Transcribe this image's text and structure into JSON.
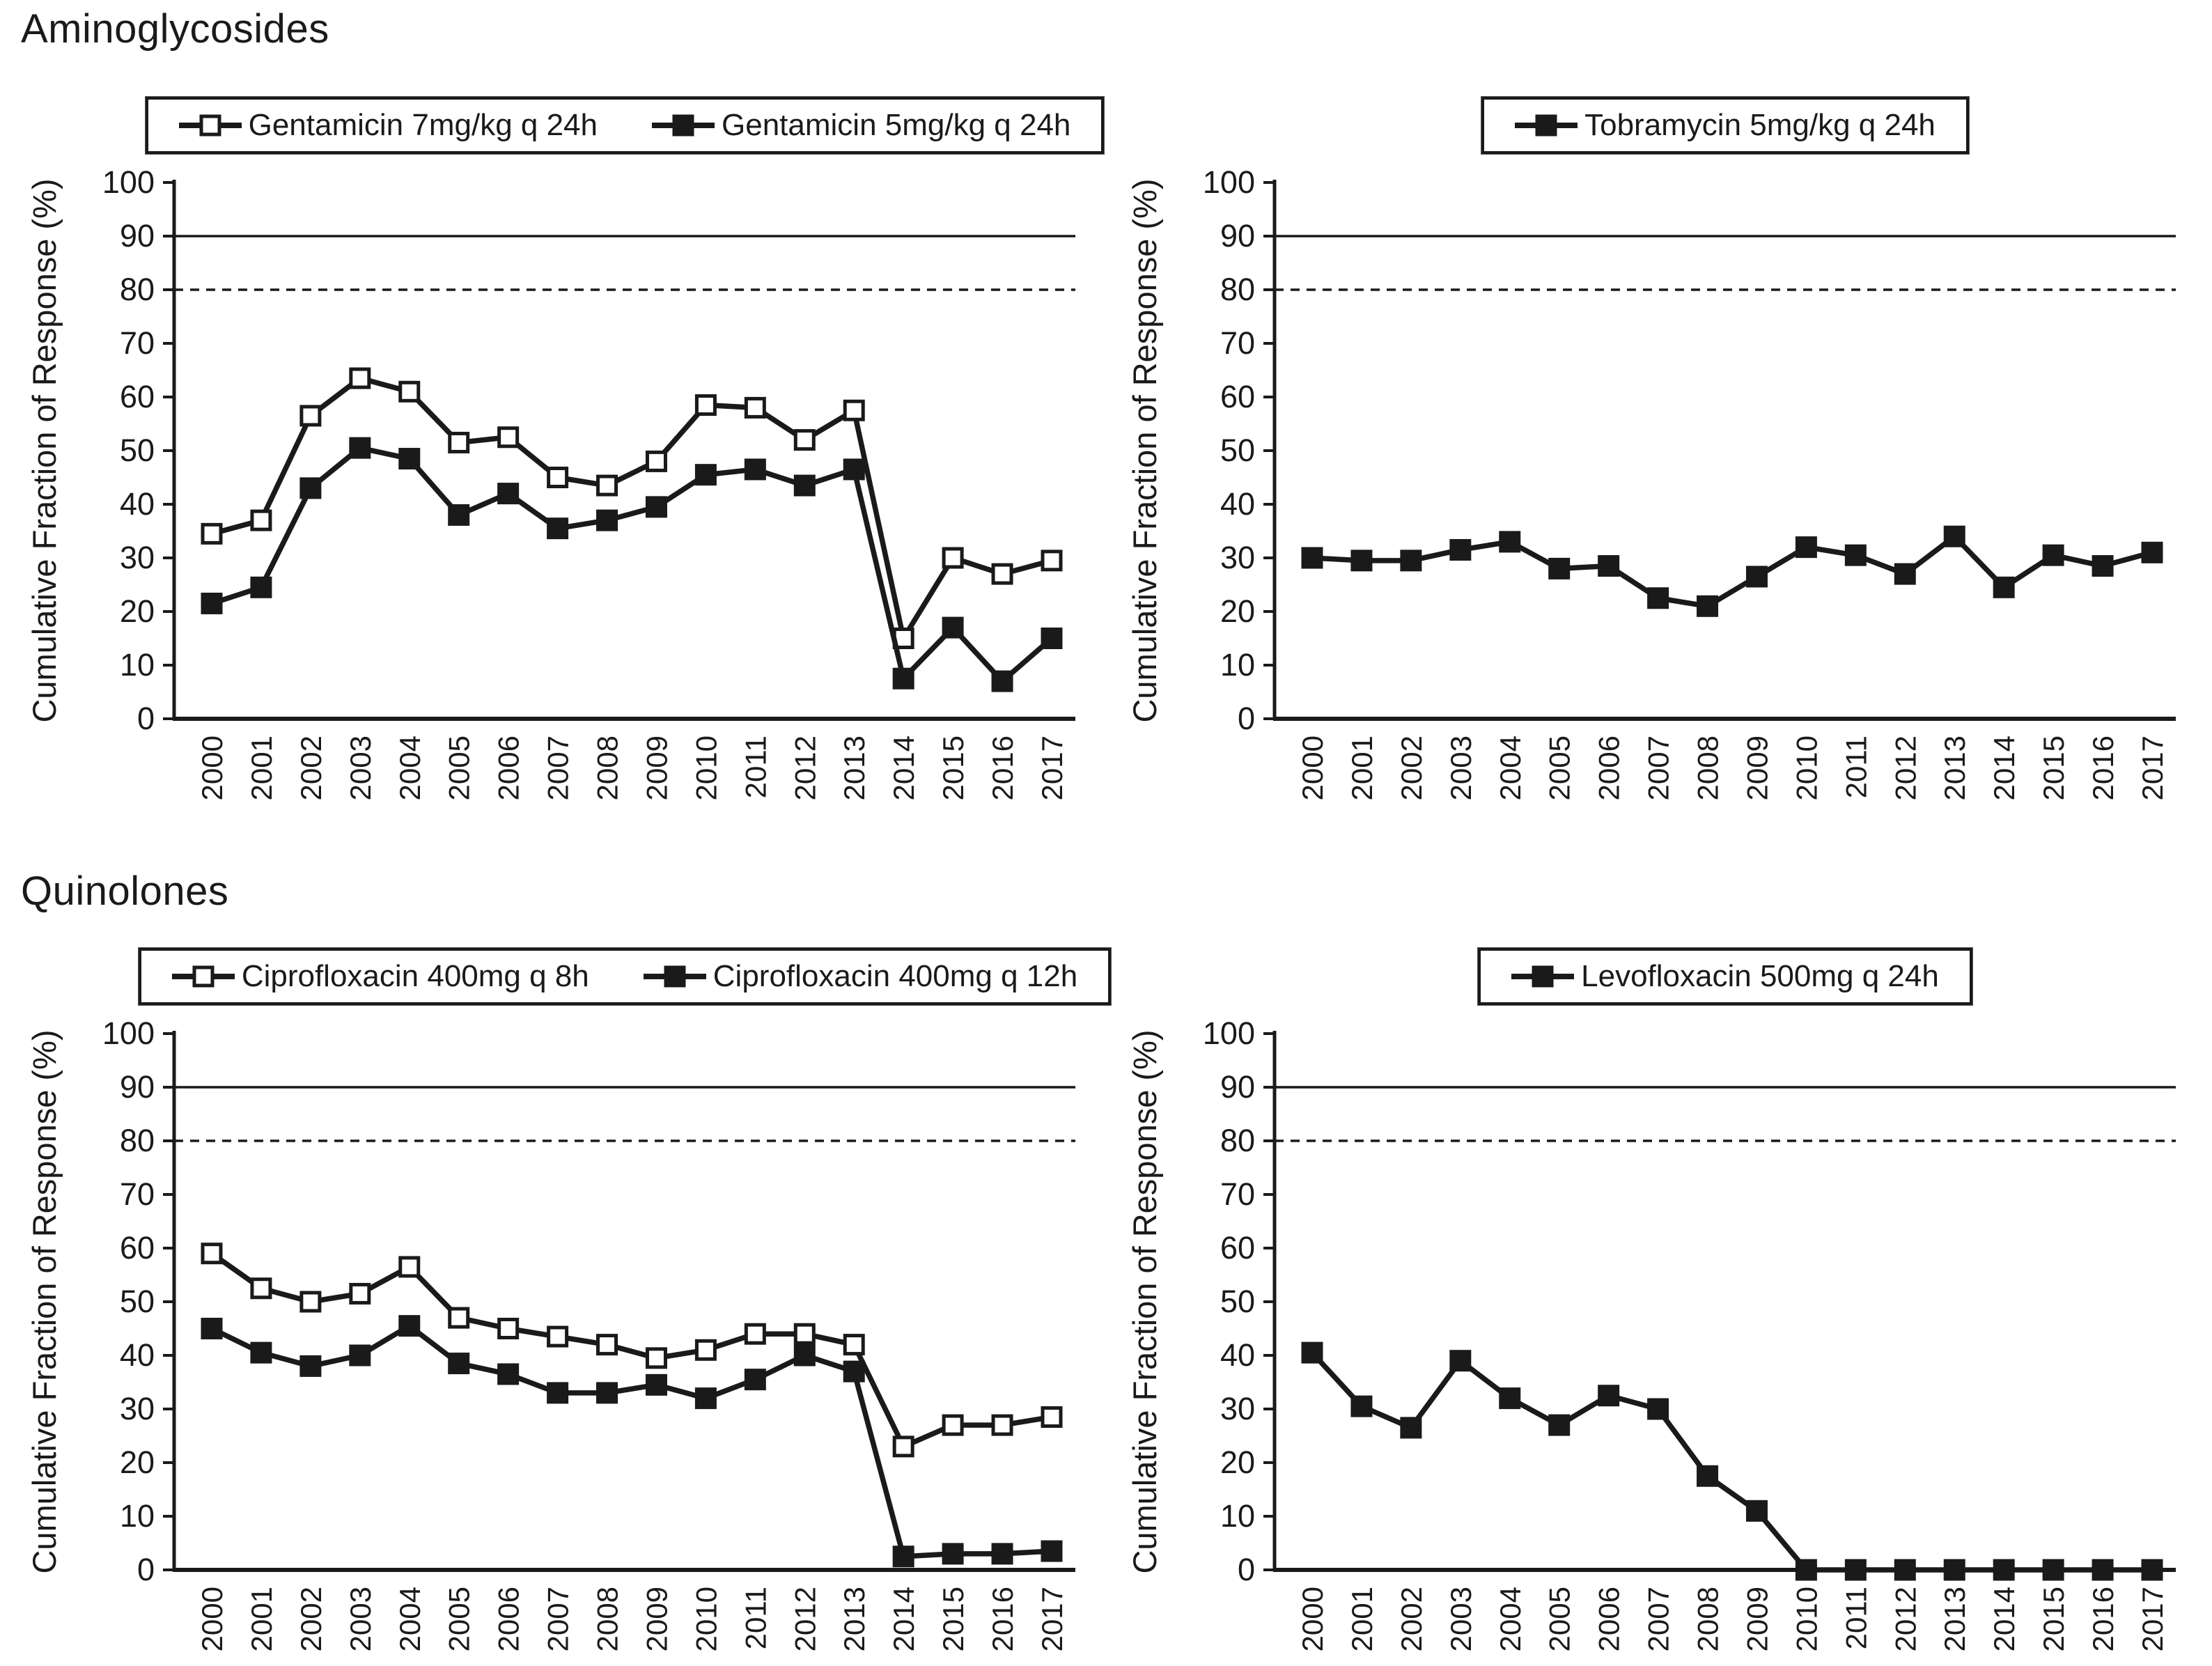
{
  "page": {
    "ink_color": "#1a1a1a",
    "background_color": "#ffffff"
  },
  "sections": [
    {
      "title": "Aminoglycosides"
    },
    {
      "title": "Quinolones"
    }
  ],
  "chart_data": [
    {
      "type": "line",
      "panel": "aminoglycosides-left",
      "ylabel": "Cumulative Fraction of Response (%)",
      "ylim": [
        0,
        100
      ],
      "ytick_step": 10,
      "grid": "off",
      "legend_position": "top",
      "reference_lines": [
        {
          "y": 90,
          "style": "solid"
        },
        {
          "y": 80,
          "style": "dashed"
        }
      ],
      "categories": [
        "2000",
        "2001",
        "2002",
        "2003",
        "2004",
        "2005",
        "2006",
        "2007",
        "2008",
        "2009",
        "2010",
        "2011",
        "2012",
        "2013",
        "2014",
        "2015",
        "2016",
        "2017"
      ],
      "series": [
        {
          "name": "Gentamicin 7mg/kg q 24h",
          "marker": "open-square",
          "values": [
            34.5,
            37,
            56.5,
            63.5,
            61,
            51.5,
            52.5,
            45,
            43.5,
            48,
            58.5,
            58,
            52,
            57.5,
            15,
            30,
            27,
            29.5
          ]
        },
        {
          "name": "Gentamicin 5mg/kg  q 24h",
          "marker": "filled-square",
          "values": [
            21.5,
            24.5,
            43,
            50.5,
            48.5,
            38,
            42,
            35.5,
            37,
            39.5,
            45.5,
            46.5,
            43.5,
            46.5,
            7.5,
            17,
            7,
            15
          ]
        }
      ]
    },
    {
      "type": "line",
      "panel": "aminoglycosides-right",
      "ylabel": "Cumulative Fraction of Response (%)",
      "ylim": [
        0,
        100
      ],
      "ytick_step": 10,
      "grid": "off",
      "legend_position": "top",
      "reference_lines": [
        {
          "y": 90,
          "style": "solid"
        },
        {
          "y": 80,
          "style": "dashed"
        }
      ],
      "categories": [
        "2000",
        "2001",
        "2002",
        "2003",
        "2004",
        "2005",
        "2006",
        "2007",
        "2008",
        "2009",
        "2010",
        "2011",
        "2012",
        "2013",
        "2014",
        "2015",
        "2016",
        "2017"
      ],
      "series": [
        {
          "name": "Tobramycin 5mg/kg q 24h",
          "marker": "filled-square",
          "values": [
            30,
            29.5,
            29.5,
            31.5,
            33,
            28,
            28.5,
            22.5,
            21,
            26.5,
            32,
            30.5,
            27,
            34,
            24.5,
            30.5,
            28.5,
            31
          ]
        }
      ]
    },
    {
      "type": "line",
      "panel": "quinolones-left",
      "ylabel": "Cumulative Fraction of Response (%)",
      "ylim": [
        0,
        100
      ],
      "ytick_step": 10,
      "grid": "off",
      "legend_position": "top",
      "reference_lines": [
        {
          "y": 90,
          "style": "solid"
        },
        {
          "y": 80,
          "style": "dashed"
        }
      ],
      "categories": [
        "2000",
        "2001",
        "2002",
        "2003",
        "2004",
        "2005",
        "2006",
        "2007",
        "2008",
        "2009",
        "2010",
        "2011",
        "2012",
        "2013",
        "2014",
        "2015",
        "2016",
        "2017"
      ],
      "series": [
        {
          "name": "Ciprofloxacin 400mg q 8h",
          "marker": "open-square",
          "values": [
            59,
            52.5,
            50,
            51.5,
            56.5,
            47,
            45,
            43.5,
            42,
            39.5,
            41,
            44,
            44,
            42,
            23,
            27,
            27,
            28.5
          ]
        },
        {
          "name": "Ciprofloxacin 400mg q 12h",
          "marker": "filled-square",
          "values": [
            45,
            40.5,
            38,
            40,
            45.5,
            38.5,
            36.5,
            33,
            33,
            34.5,
            32,
            35.5,
            40,
            37,
            2.5,
            3,
            3,
            3.5
          ]
        }
      ]
    },
    {
      "type": "line",
      "panel": "quinolones-right",
      "ylabel": "Cumulative Fraction of Response (%)",
      "ylim": [
        0,
        100
      ],
      "ytick_step": 10,
      "grid": "off",
      "legend_position": "top",
      "reference_lines": [
        {
          "y": 90,
          "style": "solid"
        },
        {
          "y": 80,
          "style": "dashed"
        }
      ],
      "categories": [
        "2000",
        "2001",
        "2002",
        "2003",
        "2004",
        "2005",
        "2006",
        "2007",
        "2008",
        "2009",
        "2010",
        "2011",
        "2012",
        "2013",
        "2014",
        "2015",
        "2016",
        "2017"
      ],
      "series": [
        {
          "name": "Levofloxacin 500mg q 24h",
          "marker": "filled-square",
          "values": [
            40.5,
            30.5,
            26.5,
            39,
            32,
            27,
            32.5,
            30,
            17.5,
            11,
            0,
            0,
            0,
            0,
            0,
            0,
            0,
            0
          ]
        }
      ]
    }
  ]
}
